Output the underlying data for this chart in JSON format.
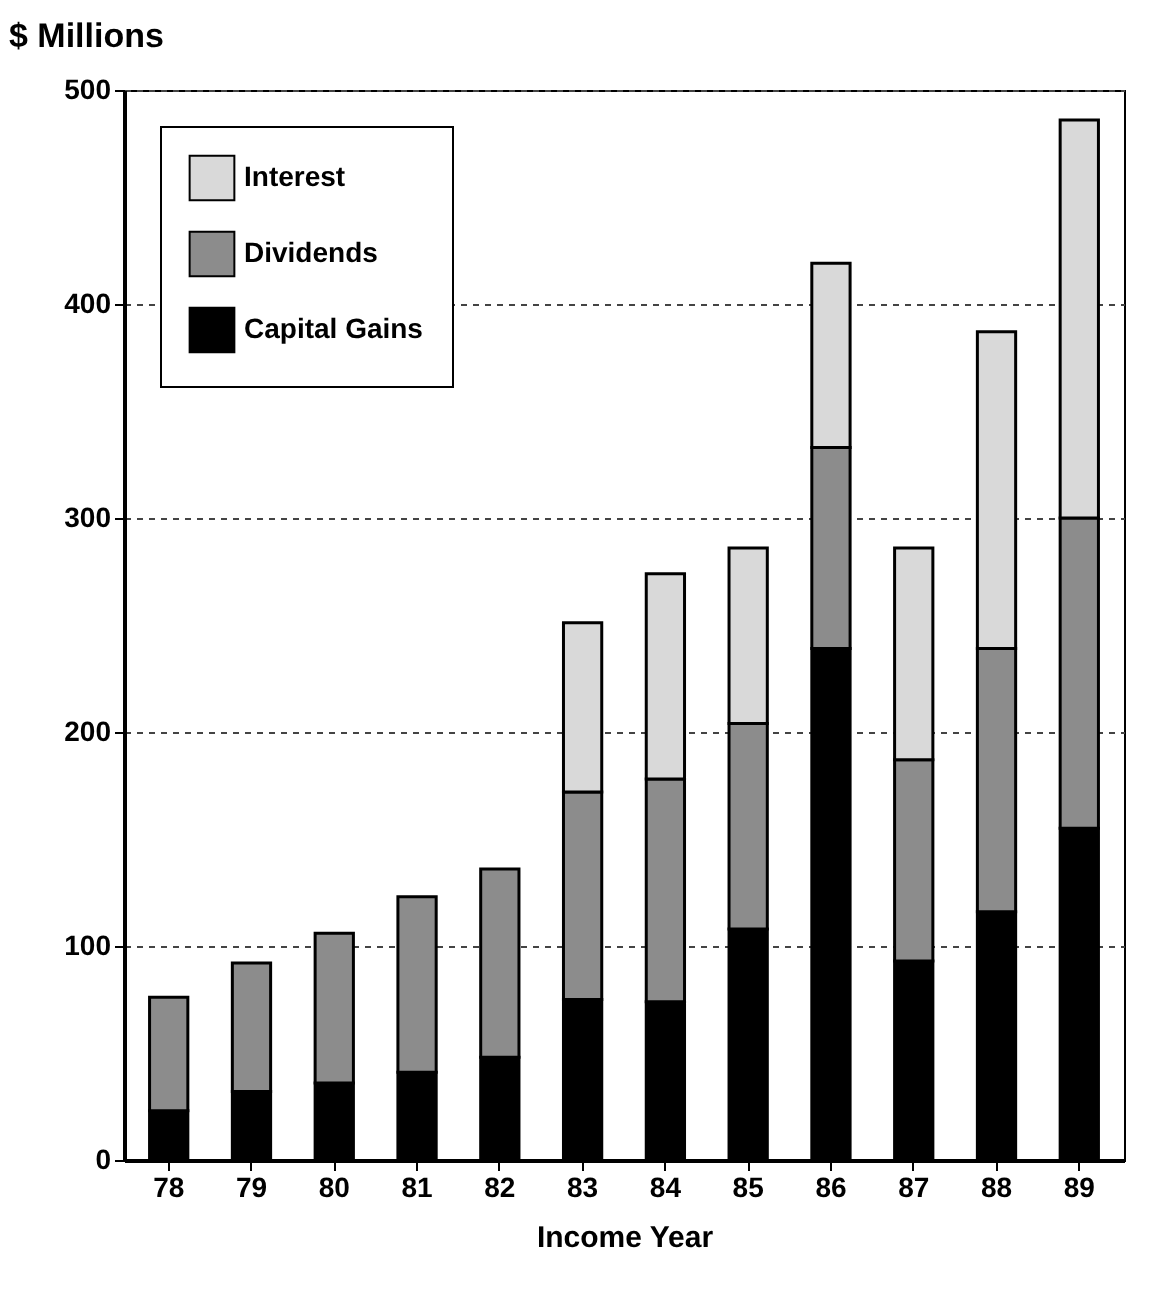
{
  "chart_data": {
    "type": "bar",
    "stacked": true,
    "ylabel": "$ Millions",
    "xlabel": "Income Year",
    "categories": [
      "78",
      "79",
      "80",
      "81",
      "82",
      "83",
      "84",
      "85",
      "86",
      "87",
      "88",
      "89"
    ],
    "series": [
      {
        "name": "Capital Gains",
        "color": "#000000",
        "values": [
          23,
          32,
          36,
          41,
          48,
          75,
          74,
          108,
          239,
          93,
          116,
          155
        ]
      },
      {
        "name": "Dividends",
        "color": "#8c8c8c",
        "values": [
          53,
          60,
          70,
          82,
          88,
          97,
          104,
          96,
          94,
          94,
          123,
          145
        ]
      },
      {
        "name": "Interest",
        "color": "#d9d9d9",
        "values": [
          null,
          null,
          null,
          null,
          null,
          79,
          96,
          82,
          86,
          99,
          148,
          186
        ]
      }
    ],
    "ylim": [
      0,
      500
    ],
    "yticks": [
      0,
      100,
      200,
      300,
      400,
      500
    ],
    "grid": "y",
    "legend": "top left"
  }
}
